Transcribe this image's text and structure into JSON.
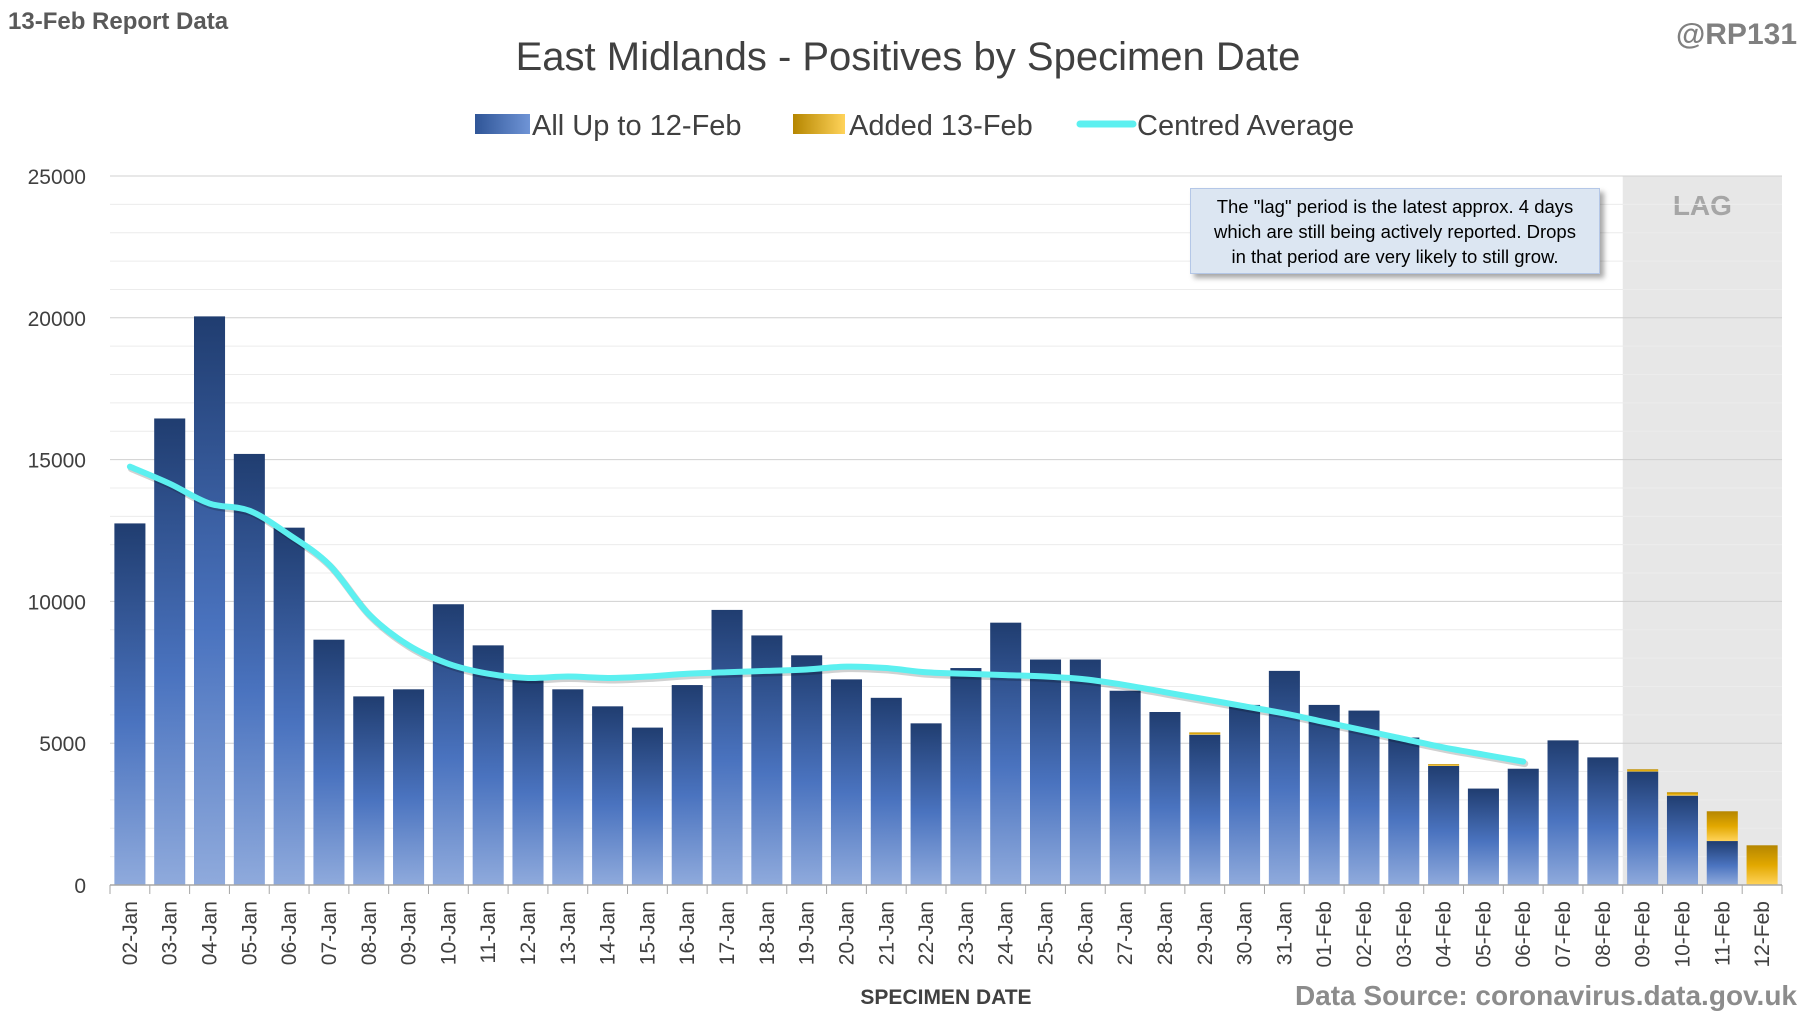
{
  "header": {
    "report_label": "13-Feb Report Data",
    "handle": "@RP131",
    "source": "Data Source: coronavirus.data.gov.uk"
  },
  "note": {
    "lines": [
      "The \"lag\" period is the latest approx. 4 days",
      "which are still being actively reported.  Drops",
      "in that period are very likely to still grow."
    ]
  },
  "chart_data": {
    "type": "bar",
    "title": "East Midlands - Positives by Specimen Date",
    "xlabel": "SPECIMEN DATE",
    "ylabel": "",
    "ylim": [
      0,
      25000
    ],
    "yticks": [
      0,
      5000,
      10000,
      15000,
      20000,
      25000
    ],
    "grid": true,
    "legend_position": "top",
    "lag_label": "LAG",
    "lag_start_category": "09-Feb",
    "categories": [
      "02-Jan",
      "03-Jan",
      "04-Jan",
      "05-Jan",
      "06-Jan",
      "07-Jan",
      "08-Jan",
      "09-Jan",
      "10-Jan",
      "11-Jan",
      "12-Jan",
      "13-Jan",
      "14-Jan",
      "15-Jan",
      "16-Jan",
      "17-Jan",
      "18-Jan",
      "19-Jan",
      "20-Jan",
      "21-Jan",
      "22-Jan",
      "23-Jan",
      "24-Jan",
      "25-Jan",
      "26-Jan",
      "27-Jan",
      "28-Jan",
      "29-Jan",
      "30-Jan",
      "31-Jan",
      "01-Feb",
      "02-Feb",
      "03-Feb",
      "04-Feb",
      "05-Feb",
      "06-Feb",
      "07-Feb",
      "08-Feb",
      "09-Feb",
      "10-Feb",
      "11-Feb",
      "12-Feb"
    ],
    "series": [
      {
        "name": "All Up to 12-Feb",
        "kind": "bar",
        "color": "#3d65a8",
        "values": [
          12750,
          16450,
          20050,
          15200,
          12600,
          8650,
          6650,
          6900,
          9900,
          8450,
          7250,
          6900,
          6300,
          5550,
          7050,
          9700,
          8800,
          8100,
          7250,
          6600,
          5700,
          7650,
          9250,
          7950,
          7950,
          6850,
          6100,
          5300,
          6350,
          7550,
          6350,
          6150,
          5200,
          4200,
          3400,
          4100,
          5100,
          4500,
          4000,
          3150,
          1550,
          0
        ]
      },
      {
        "name": "Added 13-Feb",
        "kind": "bar",
        "color": "#e8b000",
        "values": [
          0,
          0,
          0,
          0,
          0,
          0,
          0,
          0,
          0,
          0,
          0,
          0,
          0,
          0,
          0,
          0,
          0,
          0,
          0,
          0,
          0,
          0,
          0,
          0,
          0,
          0,
          0,
          80,
          0,
          0,
          0,
          0,
          0,
          60,
          0,
          0,
          0,
          0,
          80,
          120,
          1050,
          1400
        ]
      },
      {
        "name": "Centred Average",
        "kind": "line",
        "color": "#5cf0f0",
        "values": [
          14750,
          14150,
          13450,
          13200,
          12350,
          11300,
          9550,
          8450,
          7800,
          7450,
          7300,
          7350,
          7300,
          7350,
          7450,
          7500,
          7550,
          7600,
          7700,
          7650,
          7500,
          7450,
          7400,
          7350,
          7250,
          7050,
          6800,
          6550,
          6300,
          6050,
          5750,
          5450,
          5150,
          4850,
          4600,
          4350,
          null,
          null,
          null,
          null,
          null,
          null
        ]
      }
    ]
  }
}
